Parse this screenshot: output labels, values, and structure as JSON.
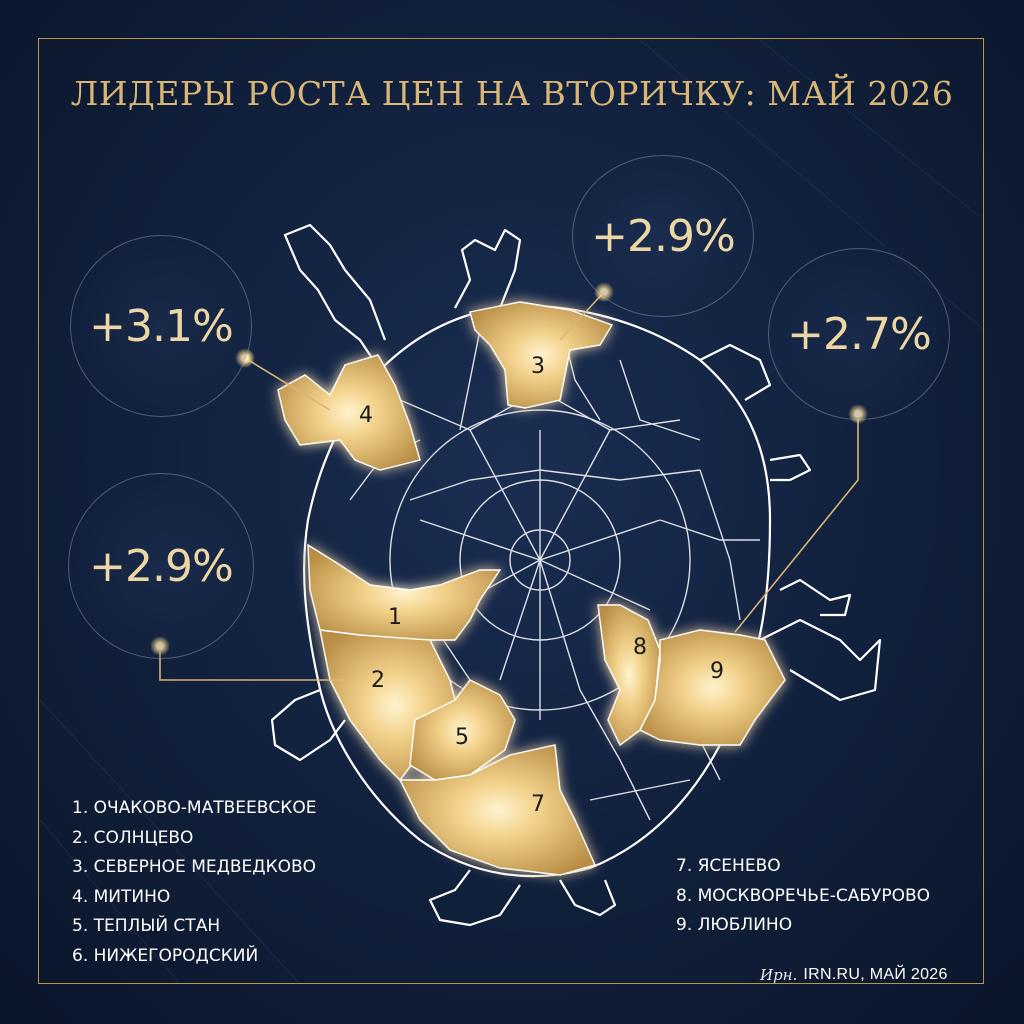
{
  "title": "ЛИДЕРЫ РОСТА ЦЕН НА ВТОРИЧКУ: МАЙ 2026",
  "callouts": [
    {
      "label": "+3.1%",
      "district": 4
    },
    {
      "label": "+2.9%",
      "district": 3
    },
    {
      "label": "+2.7%",
      "district": 9
    },
    {
      "label": "+2.9%",
      "district": 2
    }
  ],
  "district_markers": [
    "1",
    "2",
    "3",
    "4",
    "5",
    "7",
    "8",
    "9"
  ],
  "legend_left": [
    "1. ОЧАКОВО-МАТВЕЕВСКОЕ",
    "2. СОЛНЦЕВО",
    "3. СЕВЕРНОЕ МЕДВЕДКОВО",
    "4. МИТИНО",
    "5. ТЕПЛЫЙ СТАН",
    "6. НИЖЕГОРОДСКИЙ"
  ],
  "legend_right": [
    "7. ЯСЕНЕВО",
    "8. МОСКВОРЕЧЬЕ-САБУРОВО",
    "9. ЛЮБЛИНО"
  ],
  "credit": {
    "signature": "Ирн.",
    "text": "IRN.RU, МАЙ 2026"
  },
  "colors": {
    "background": "#12223f",
    "gold": "#d9b676",
    "highlight": "#f0cf86",
    "lines": "#ffffff"
  }
}
